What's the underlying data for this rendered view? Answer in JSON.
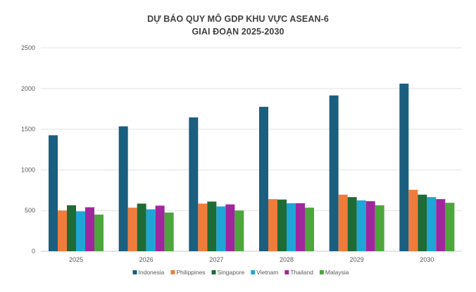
{
  "chart_data": {
    "type": "bar",
    "title_line1": "DỰ BÁO QUY MÔ GDP KHU VỰC ASEAN-6",
    "title_line2": "GIAI ĐOẠN 2025-2030",
    "xlabel": "",
    "ylabel": "",
    "categories": [
      "2025",
      "2026",
      "2027",
      "2028",
      "2029",
      "2030"
    ],
    "ylim": [
      0,
      2500
    ],
    "yticks": [
      0,
      500,
      1000,
      1500,
      2000,
      2500
    ],
    "grid": true,
    "legend_position": "bottom",
    "series": [
      {
        "name": "Indonesia",
        "color": "#1a5e80",
        "values": [
          1425,
          1535,
          1645,
          1775,
          1915,
          2060
        ]
      },
      {
        "name": "Philippines",
        "color": "#f07c3c",
        "values": [
          500,
          535,
          585,
          640,
          695,
          755
        ]
      },
      {
        "name": "Singapore",
        "color": "#1e6b35",
        "values": [
          565,
          585,
          610,
          635,
          665,
          695
        ]
      },
      {
        "name": "Vietnam",
        "color": "#1fa5d6",
        "values": [
          490,
          515,
          550,
          590,
          625,
          665
        ]
      },
      {
        "name": "Thailand",
        "color": "#a0269e",
        "values": [
          540,
          560,
          575,
          590,
          615,
          640
        ]
      },
      {
        "name": "Malaysia",
        "color": "#4ca63c",
        "values": [
          450,
          475,
          500,
          535,
          565,
          595
        ]
      }
    ]
  }
}
